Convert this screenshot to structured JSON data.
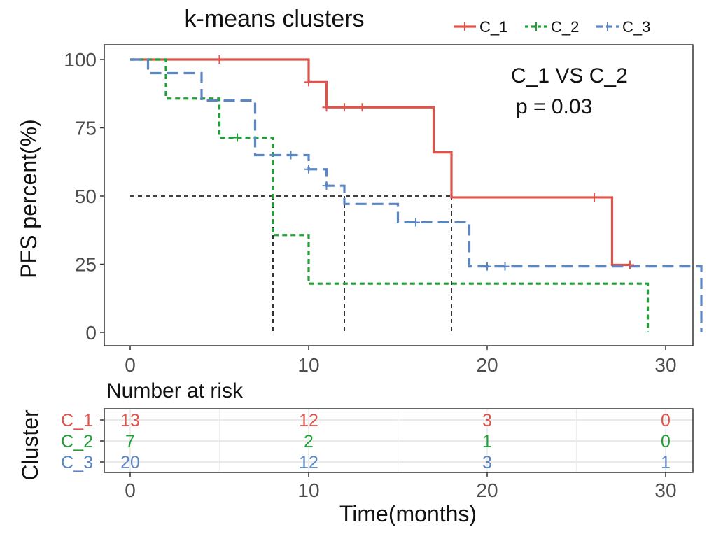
{
  "chart_data": {
    "type": "line",
    "title": "k-means clusters",
    "xlabel": "Time(months)",
    "ylabel": "PFS percent(%)",
    "xlim": [
      0,
      32
    ],
    "ylim": [
      0,
      100
    ],
    "xticks": [
      0,
      10,
      20,
      30
    ],
    "yticks": [
      0,
      25,
      50,
      75,
      100
    ],
    "grid": false,
    "legend_position": "top-right",
    "series": [
      {
        "name": "C_1",
        "color": "#e0534a",
        "dash": "solid",
        "steps": [
          [
            0,
            100
          ],
          [
            10,
            91.7
          ],
          [
            11,
            82.5
          ],
          [
            17,
            66
          ],
          [
            18,
            49.5
          ],
          [
            27,
            24.75
          ],
          [
            28,
            24.75
          ]
        ],
        "censor": [
          [
            5,
            100
          ],
          [
            10,
            91.7
          ],
          [
            11,
            82.5
          ],
          [
            12,
            82.5
          ],
          [
            13,
            82.5
          ],
          [
            26,
            49.5
          ],
          [
            28,
            24.75
          ]
        ]
      },
      {
        "name": "C_2",
        "color": "#21a037",
        "dash": "dashed",
        "steps": [
          [
            0,
            100
          ],
          [
            2,
            85.7
          ],
          [
            5,
            71.4
          ],
          [
            8,
            35.7
          ],
          [
            10,
            17.9
          ],
          [
            29,
            0
          ]
        ],
        "censor": [
          [
            6,
            71.4
          ]
        ]
      },
      {
        "name": "C_3",
        "color": "#5b86c6",
        "dash": "longdash",
        "steps": [
          [
            0,
            100
          ],
          [
            1,
            95
          ],
          [
            4,
            85
          ],
          [
            7,
            65
          ],
          [
            10,
            59.8
          ],
          [
            11,
            53.8
          ],
          [
            12,
            47.1
          ],
          [
            15,
            40.4
          ],
          [
            19,
            24.2
          ],
          [
            32,
            0
          ]
        ],
        "censor": [
          [
            9,
            65
          ],
          [
            10,
            59.8
          ],
          [
            11,
            53.8
          ],
          [
            16,
            40.4
          ],
          [
            20,
            24.2
          ],
          [
            21,
            24.2
          ]
        ]
      }
    ],
    "median_lines": [
      8,
      12,
      18
    ],
    "median_level": 50,
    "annotations": [
      "C_1 VS C_2",
      "p = 0.03"
    ],
    "risk_table": {
      "title": "Number at risk",
      "ylabel": "Cluster",
      "times": [
        0,
        10,
        20,
        30
      ],
      "rows": [
        {
          "name": "C_1",
          "counts": [
            13,
            12,
            3,
            0
          ]
        },
        {
          "name": "C_2",
          "counts": [
            7,
            2,
            1,
            0
          ]
        },
        {
          "name": "C_3",
          "counts": [
            20,
            12,
            3,
            1
          ]
        }
      ]
    }
  }
}
